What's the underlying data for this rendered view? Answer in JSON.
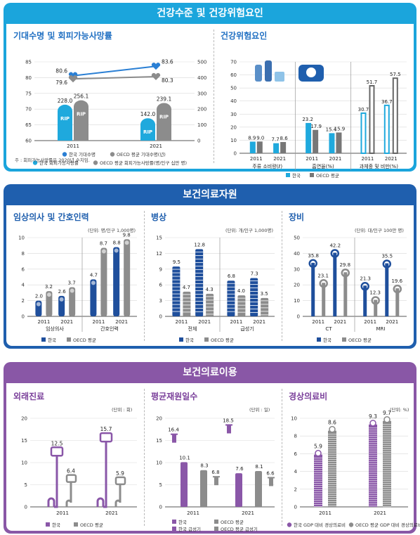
{
  "colors": {
    "blue": "#2a7fd4",
    "cyan": "#1fa9dd",
    "navy": "#1f4f9c",
    "gray": "#8c8c8c",
    "purple": "#8a57a8",
    "section1": "#1ba5dc",
    "section2": "#1f5fae",
    "section3": "#8957a6"
  },
  "sections": {
    "s1": "건강수준 및 건강위험요인",
    "s2": "보건의료자원",
    "s3": "보건의료이용"
  },
  "panels": {
    "life": "기대수명 및 회피가능사망률",
    "risk": "건강위험요인",
    "doctors": "임상의사 및 간호인력",
    "beds": "병상",
    "equip": "장비",
    "outpatient": "외래진료",
    "stay": "평균재원일수",
    "spending": "경상의료비"
  },
  "units": {
    "doctors": "(단위: 명/인구 1,000명)",
    "beds": "(단위: 개/인구 1,000명)",
    "equip": "(단위: 대/인구 100만 명)",
    "outpatient": "(단위 : 회)",
    "stay": "(단위 : 일)",
    "spending": "(단위: %)"
  },
  "note": "주 : 회피가능사망률은 2020년 수치임.",
  "chart_data": [
    {
      "id": "life",
      "type": "bar",
      "x": [
        "2011",
        "2021"
      ],
      "y_left_ticks": [
        "85",
        "80",
        "75",
        "70",
        "65",
        "60"
      ],
      "y_right_ticks": [
        "500",
        "400",
        "300",
        "200",
        "100",
        "0"
      ],
      "ylim_left": [
        60,
        85
      ],
      "ylim_right": [
        0,
        500
      ],
      "series": [
        {
          "name": "한국 기대수명",
          "axis": "left",
          "type": "line",
          "values": [
            80.6,
            83.6
          ]
        },
        {
          "name": "OECD 평균 기대수명(년)",
          "axis": "left",
          "type": "line",
          "values": [
            79.6,
            80.3
          ]
        },
        {
          "name": "한국 회피가능사망률",
          "axis": "right",
          "type": "bar",
          "values": [
            228.0,
            142.0
          ],
          "labels": [
            "228.0",
            "142.0"
          ]
        },
        {
          "name": "OECD 평균 회피가능사망률(명/인구 십만 명)",
          "axis": "right",
          "type": "bar",
          "values": [
            256.1,
            239.1
          ],
          "labels": [
            "256.1",
            "239.1"
          ]
        }
      ],
      "tomb_text": "RIP"
    },
    {
      "id": "risk",
      "type": "bar",
      "y_ticks": [
        "70",
        "60",
        "50",
        "40",
        "30",
        "20",
        "10",
        "0"
      ],
      "ylim": [
        0,
        70
      ],
      "groups": [
        {
          "label": "주류 소비량(ℓ)",
          "x": [
            "2011",
            "2021"
          ],
          "korea": [
            8.9,
            7.7
          ],
          "oecd": [
            9.0,
            8.6
          ]
        },
        {
          "label": "흡연율(%)",
          "x": [
            "2011",
            "2021"
          ],
          "korea": [
            23.2,
            15.4
          ],
          "oecd": [
            17.9,
            15.9
          ]
        },
        {
          "label": "과체중 및 비만(%)",
          "x": [
            "2011",
            "2021"
          ],
          "korea": [
            30.7,
            36.7
          ],
          "oecd": [
            51.7,
            57.5
          ]
        }
      ],
      "legend": [
        "한국",
        "OECD 평균"
      ]
    },
    {
      "id": "doctors",
      "type": "bar",
      "y_ticks": [
        "10",
        "8",
        "6",
        "4",
        "2",
        "0"
      ],
      "ylim": [
        0,
        10
      ],
      "groups": [
        {
          "label": "임상의사",
          "x": [
            "2011",
            "2021"
          ],
          "korea": [
            2.0,
            2.6
          ],
          "oecd": [
            3.2,
            3.7
          ]
        },
        {
          "label": "간호인력",
          "x": [
            "2011",
            "2021"
          ],
          "korea": [
            4.7,
            8.8
          ],
          "oecd": [
            8.7,
            9.8
          ]
        }
      ],
      "legend": [
        "한국",
        "OECD 평균"
      ]
    },
    {
      "id": "beds",
      "type": "bar",
      "y_ticks": [
        "15",
        "12",
        "9",
        "6",
        "3",
        "0"
      ],
      "ylim": [
        0,
        15
      ],
      "groups": [
        {
          "label": "전체",
          "x": [
            "2011",
            "2021"
          ],
          "korea": [
            9.5,
            12.8
          ],
          "oecd": [
            4.7,
            4.3
          ]
        },
        {
          "label": "급성기",
          "x": [
            "2011",
            "2021"
          ],
          "korea": [
            6.8,
            7.3
          ],
          "oecd": [
            4.0,
            3.5
          ]
        }
      ],
      "legend": [
        "한국",
        "OECD 평균"
      ]
    },
    {
      "id": "equip",
      "type": "bar",
      "y_ticks": [
        "50",
        "40",
        "30",
        "20",
        "10",
        "0"
      ],
      "ylim": [
        0,
        50
      ],
      "groups": [
        {
          "label": "CT",
          "x": [
            "2011",
            "2021"
          ],
          "korea": [
            35.8,
            42.2
          ],
          "oecd": [
            23.1,
            29.8
          ]
        },
        {
          "label": "MRI",
          "x": [
            "2011",
            "2021"
          ],
          "korea": [
            21.3,
            35.5
          ],
          "oecd": [
            12.3,
            19.6
          ]
        }
      ],
      "legend": [
        "한국",
        "OECD 평균"
      ]
    },
    {
      "id": "outpatient",
      "type": "bar",
      "y_ticks": [
        "20",
        "15",
        "10",
        "5",
        "0"
      ],
      "ylim": [
        0,
        20
      ],
      "groups": [
        {
          "label": "",
          "x": [
            "2011",
            "2021"
          ],
          "korea": [
            12.5,
            15.7
          ],
          "oecd": [
            6.4,
            5.9
          ]
        }
      ],
      "legend": [
        "한국",
        "OECD 평균"
      ]
    },
    {
      "id": "stay",
      "type": "bar",
      "y_ticks": [
        "20",
        "15",
        "10",
        "5",
        "0"
      ],
      "ylim": [
        0,
        20
      ],
      "x": [
        "2011",
        "2021"
      ],
      "series": [
        {
          "name": "한국",
          "values": [
            10.1,
            7.6
          ]
        },
        {
          "name": "OECD 평균",
          "values": [
            8.3,
            8.1
          ]
        },
        {
          "name": "한국 급성기",
          "values": [
            16.4,
            18.5
          ]
        },
        {
          "name": "OECD 평균 급성기",
          "values": [
            6.8,
            6.6
          ]
        }
      ]
    },
    {
      "id": "spending",
      "type": "bar",
      "y_ticks": [
        "10",
        "8",
        "6",
        "4",
        "2",
        "0"
      ],
      "ylim": [
        0,
        10
      ],
      "x": [
        "2011",
        "2021"
      ],
      "korea": [
        5.9,
        9.3
      ],
      "oecd": [
        8.6,
        9.7
      ],
      "legend": [
        "한국 GDP 대비 경상의료비",
        "OECD 평균 GDP 대비 경상의료비"
      ]
    }
  ]
}
